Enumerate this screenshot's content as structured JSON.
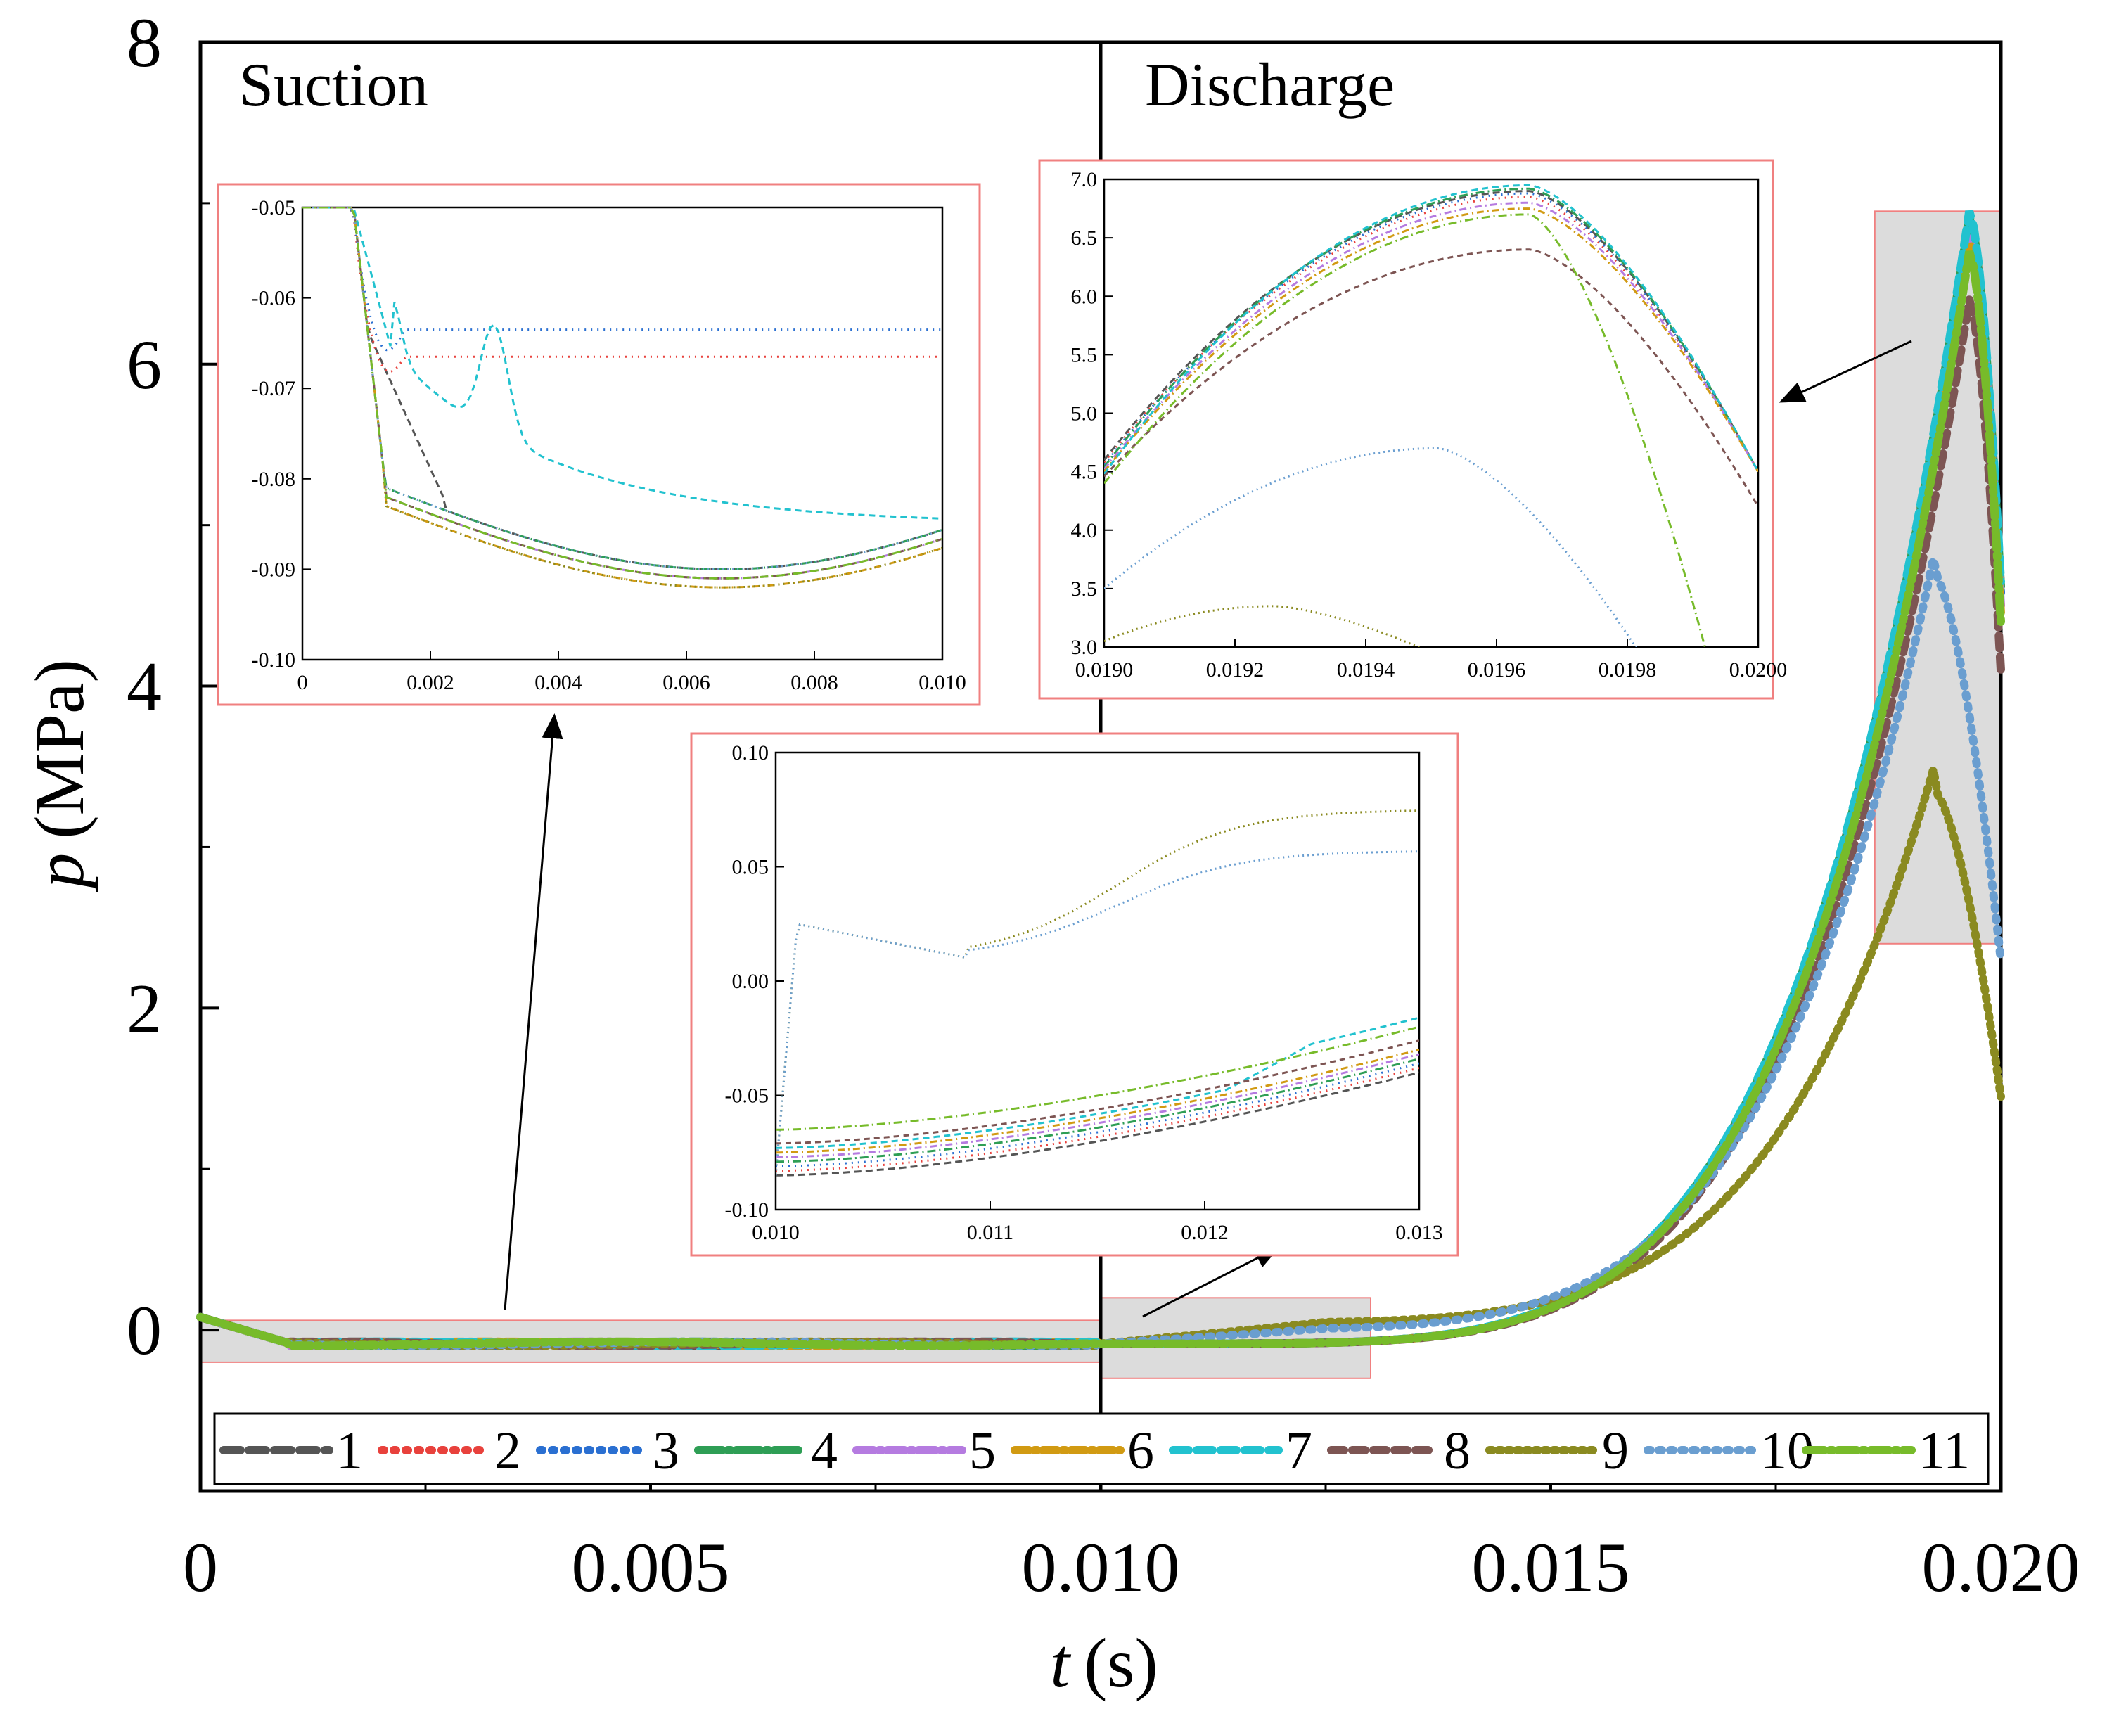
{
  "chart_data": [
    {
      "type": "line",
      "role": "main",
      "xlabel_var": "t",
      "xlabel_unit": "(s)",
      "ylabel_var": "p",
      "ylabel_unit": "(MPa)",
      "xlim": [
        0,
        0.02
      ],
      "ylim": [
        -1,
        8
      ],
      "x_ticks": [
        0,
        0.005,
        0.01,
        0.015,
        0.02
      ],
      "x_tick_labels": [
        "0",
        "0.005",
        "0.010",
        "0.015",
        "0.020"
      ],
      "y_ticks": [
        0,
        2,
        4,
        6,
        8
      ],
      "y_tick_labels": [
        "0",
        "2",
        "4",
        "6",
        "8"
      ],
      "annotations": {
        "suction": "Suction",
        "discharge": "Discharge"
      },
      "highlight_regions": [
        {
          "x": [
            0,
            0.01
          ],
          "y": [
            -0.2,
            0.06
          ]
        },
        {
          "x": [
            0.01,
            0.013
          ],
          "y": [
            -0.3,
            0.2
          ]
        },
        {
          "x": [
            0.0186,
            0.02
          ],
          "y": [
            2.4,
            6.95
          ]
        }
      ],
      "legend": [
        "1",
        "2",
        "3",
        "4",
        "5",
        "6",
        "7",
        "8",
        "9",
        "10",
        "11"
      ],
      "series": [
        {
          "name": "1",
          "color": "#555555",
          "dash": "24,12",
          "peak": 6.9
        },
        {
          "name": "2",
          "color": "#e8413c",
          "dash": "3,14",
          "peak": 6.85
        },
        {
          "name": "3",
          "color": "#2a6fd1",
          "dash": "3,14",
          "peak": 6.88
        },
        {
          "name": "4",
          "color": "#2e9e55",
          "dash": "34,8,4,8",
          "peak": 6.92
        },
        {
          "name": "5",
          "color": "#b57be0",
          "dash": "24,8,4,8",
          "peak": 6.8
        },
        {
          "name": "6",
          "color": "#d19a12",
          "dash": "20,8,4,8",
          "peak": 6.75
        },
        {
          "name": "7",
          "color": "#22c2cf",
          "dash": "22,12",
          "peak": 6.95
        },
        {
          "name": "8",
          "color": "#7d5553",
          "dash": "18,12",
          "peak": 6.4
        },
        {
          "name": "9",
          "color": "#8a8a20",
          "dash": "4,9",
          "peak": 3.35
        },
        {
          "name": "10",
          "color": "#6a9ed0",
          "dash": "4,12",
          "peak": 4.7
        },
        {
          "name": "11",
          "color": "#77bb2a",
          "dash": "26,8,4,8",
          "peak": 6.7
        }
      ]
    },
    {
      "type": "line",
      "role": "inset-suction",
      "xlim": [
        0,
        0.01
      ],
      "ylim": [
        -0.1,
        -0.05
      ],
      "x_tick_labels": [
        "0",
        "0.002",
        "0.004",
        "0.006",
        "0.008",
        "0.010"
      ],
      "y_tick_labels": [
        "-0.05",
        "-0.06",
        "-0.07",
        "-0.08",
        "-0.09",
        "-0.10"
      ],
      "steady_values": {
        "2": -0.0665,
        "3": -0.0635,
        "7": -0.0827,
        "others": -0.0875
      }
    },
    {
      "type": "line",
      "role": "inset-discharge",
      "xlim": [
        0.019,
        0.02
      ],
      "ylim": [
        3.0,
        7.0
      ],
      "x_tick_labels": [
        "0.0190",
        "0.0192",
        "0.0194",
        "0.0196",
        "0.0198",
        "0.0200"
      ],
      "y_tick_labels": [
        "7.0",
        "6.5",
        "6.0",
        "5.5",
        "5.0",
        "4.5",
        "4.0",
        "3.5",
        "3.0"
      ]
    },
    {
      "type": "line",
      "role": "inset-transition",
      "xlim": [
        0.01,
        0.013
      ],
      "ylim": [
        -0.1,
        0.1
      ],
      "x_tick_labels": [
        "0.010",
        "0.011",
        "0.012",
        "0.013"
      ],
      "y_tick_labels": [
        "0.10",
        "0.05",
        "0.00",
        "-0.05",
        "-0.10"
      ],
      "end_values": {
        "9": 0.075,
        "10": 0.057
      }
    }
  ]
}
